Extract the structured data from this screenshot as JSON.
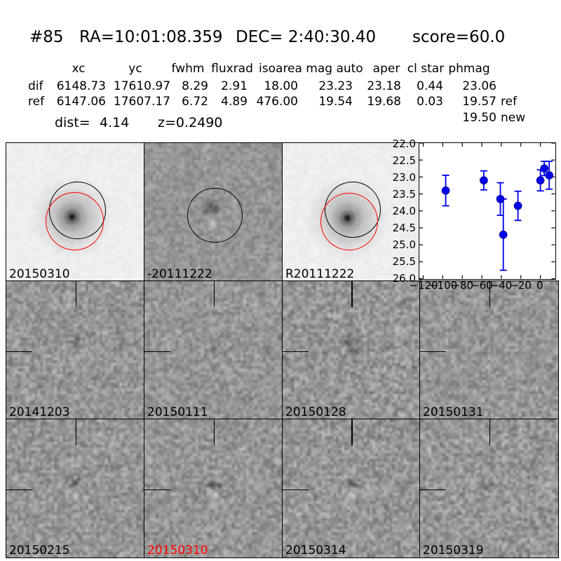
{
  "title": {
    "id": "#85",
    "ra": "RA=10:01:08.359",
    "dec": "DEC= 2:40:30.40",
    "score": "score=60.0"
  },
  "table": {
    "headers": [
      "xc",
      "yc",
      "fwhm",
      "fluxrad",
      "isoarea",
      "mag auto",
      "aper",
      "cl star",
      "phmag"
    ],
    "rows": [
      {
        "label": "dif",
        "values": [
          "6148.73",
          "17610.97",
          "8.29",
          "2.91",
          "18.00",
          "23.23",
          "23.18",
          "0.44",
          "23.06"
        ],
        "suffix": ""
      },
      {
        "label": "ref",
        "values": [
          "6147.06",
          "17607.17",
          "6.72",
          "4.89",
          "476.00",
          "19.54",
          "19.68",
          "0.03",
          "19.57"
        ],
        "suffix": "ref"
      }
    ],
    "extra_row": {
      "value": "19.50",
      "suffix": "new"
    },
    "dist_label": "dist=",
    "dist_value": "4.14",
    "z_value": "z=0.2490"
  },
  "cutouts": [
    {
      "label": "20150310",
      "label_color": "#000000",
      "kind": "new-template",
      "overlay": "circles"
    },
    {
      "label": "-20111222",
      "label_color": "#000000",
      "kind": "difference",
      "overlay": "circle"
    },
    {
      "label": "R20111222",
      "label_color": "#000000",
      "kind": "reference",
      "overlay": "circles"
    },
    {
      "label": "20141203",
      "label_color": "#000000",
      "kind": "difference",
      "overlay": "crosshair"
    },
    {
      "label": "20150111",
      "label_color": "#000000",
      "kind": "difference",
      "overlay": "crosshair"
    },
    {
      "label": "20150128",
      "label_color": "#000000",
      "kind": "difference",
      "overlay": "crosshair"
    },
    {
      "label": "20150131",
      "label_color": "#000000",
      "kind": "difference",
      "overlay": "crosshair"
    },
    {
      "label": "20150215",
      "label_color": "#000000",
      "kind": "difference",
      "overlay": "crosshair"
    },
    {
      "label": "20150310",
      "label_color": "#ff0000",
      "kind": "difference",
      "overlay": "crosshair"
    },
    {
      "label": "20150314",
      "label_color": "#000000",
      "kind": "difference",
      "overlay": "crosshair"
    },
    {
      "label": "20150319",
      "label_color": "#000000",
      "kind": "difference",
      "overlay": "crosshair"
    }
  ],
  "chart_data": {
    "type": "scatter",
    "title": "",
    "xlabel": "",
    "ylabel": "",
    "x_days": [
      -97,
      -58,
      -41,
      -38,
      -23,
      0,
      4,
      9
    ],
    "mag": [
      23.4,
      23.1,
      23.65,
      24.7,
      23.85,
      23.1,
      22.75,
      22.95
    ],
    "mag_err": [
      0.45,
      0.28,
      0.48,
      1.05,
      0.43,
      0.31,
      0.21,
      0.41
    ],
    "epoch_labels": [
      "20141203",
      "20150111",
      "20150128",
      "20150131",
      "20150215",
      "20150310",
      "20150314",
      "20150319"
    ],
    "xlim": [
      -124,
      15
    ],
    "ylim": [
      26.0,
      22.0
    ],
    "y_axis_inverted": true,
    "xticks": [
      -120,
      -100,
      -80,
      -60,
      -40,
      -20,
      0
    ],
    "xtick_labels": [
      "−120",
      "−100",
      "−80",
      "−60",
      "−40",
      "−20",
      "0"
    ],
    "yticks": [
      22.0,
      22.5,
      23.0,
      23.5,
      24.0,
      24.5,
      25.0,
      25.5,
      26.0
    ],
    "ytick_labels": [
      "22.0",
      "22.5",
      "23.0",
      "23.5",
      "24.0",
      "24.5",
      "25.0",
      "25.5",
      "26.0"
    ],
    "grid": false,
    "legend": false,
    "marker_color": "#0000ee"
  },
  "colors": {
    "background": "#ffffff",
    "text": "#000000",
    "marker_blue": "#0000ee",
    "marker_edge": "#0000a0",
    "circle_black": "#000000",
    "circle_red": "#ff0000",
    "highlight_label": "#ff0000"
  }
}
